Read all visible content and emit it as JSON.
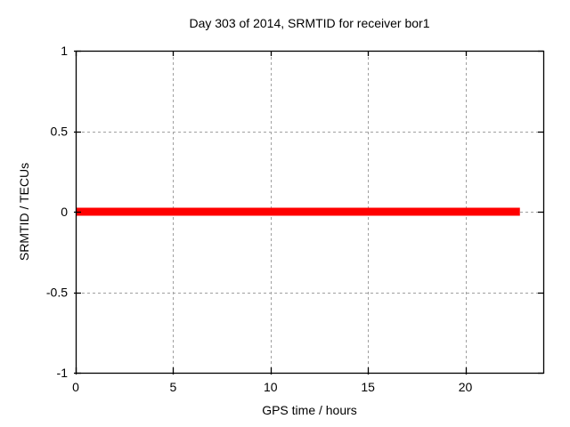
{
  "window": {
    "background_color": "#ffffff"
  },
  "chart_data": {
    "type": "line",
    "title": "Day 303 of 2014, SRMTID for receiver bor1",
    "xlabel": "GPS time / hours",
    "ylabel": "SRMTID / TECUs",
    "xlim": [
      0,
      24
    ],
    "ylim": [
      -1,
      1
    ],
    "xticks": [
      0,
      5,
      10,
      15,
      20
    ],
    "xtick_labels": [
      "0",
      "5",
      "10",
      "15",
      "20"
    ],
    "yticks": [
      -1,
      -0.5,
      0,
      0.5,
      1
    ],
    "ytick_labels": [
      "-1",
      "-0.5",
      "0",
      "0.5",
      "1"
    ],
    "grid": true,
    "grid_color": "#a0a0a0",
    "grid_dash": "3,3",
    "axis_color": "#000000",
    "text_color": "#000000",
    "legend_position": "none",
    "series": [
      {
        "name": "SRMTID",
        "color": "#ff0000",
        "line_width": 9,
        "points": [
          [
            0,
            0
          ],
          [
            22.8,
            0
          ]
        ]
      }
    ]
  }
}
